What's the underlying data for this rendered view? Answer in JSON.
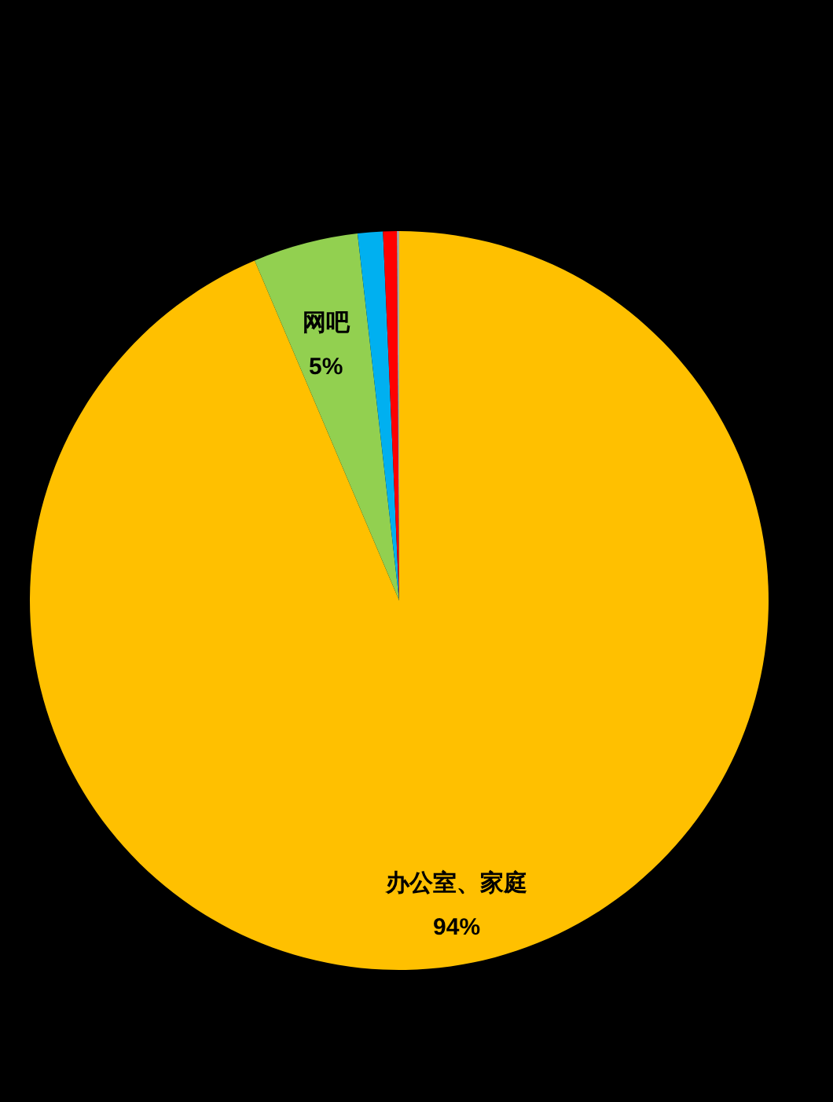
{
  "chart_data": {
    "type": "pie",
    "categories": [
      "办公室、家庭",
      "网吧",
      null,
      null,
      null
    ],
    "values": [
      93.6,
      4.6,
      1.1,
      0.6,
      0.1
    ],
    "colors": [
      "#ffc000",
      "#92d050",
      "#00b0f0",
      "#ff0000",
      "#a5a5a5"
    ],
    "value_labels": [
      "94%",
      "5%",
      null,
      null,
      null
    ]
  }
}
